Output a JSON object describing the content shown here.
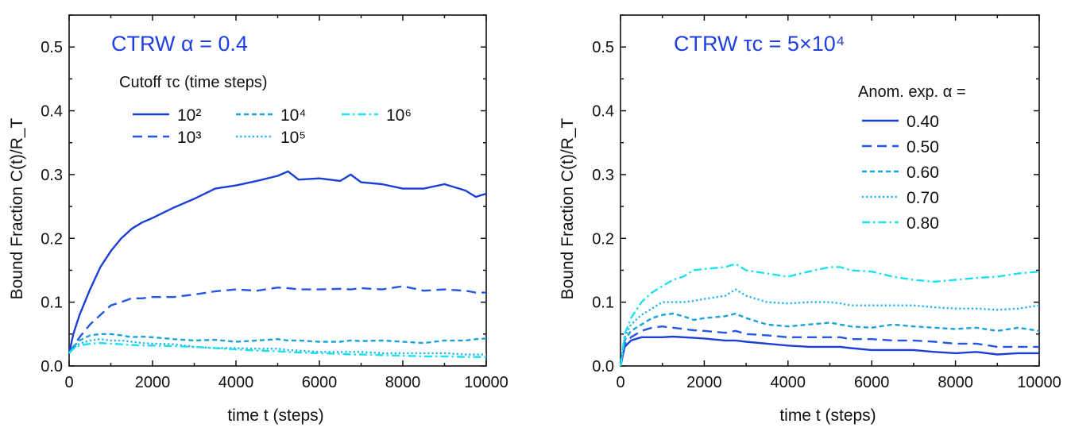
{
  "colors": {
    "series_1": "#1a3fd6",
    "series_2": "#2656e6",
    "series_3": "#1aa3d9",
    "series_4": "#22b4ee",
    "series_5": "#1ee0ee",
    "title": "#1f3fe0"
  },
  "chart_data": [
    {
      "type": "line",
      "title": "CTRW α = 0.4",
      "xlabel": "time t (steps)",
      "ylabel": "Bound Fraction C(t)/R_T",
      "xlim": [
        0,
        10000
      ],
      "ylim": [
        0,
        0.55
      ],
      "xticks": [
        "0",
        "2000",
        "4000",
        "6000",
        "8000",
        "10000"
      ],
      "yticks": [
        "0.0",
        "0.1",
        "0.2",
        "0.3",
        "0.4",
        "0.5"
      ],
      "grid": false,
      "legend": {
        "title": "Cutoff τc (time steps)",
        "placement": "top-left"
      },
      "x": [
        0,
        100,
        250,
        500,
        750,
        1000,
        1250,
        1500,
        1750,
        2000,
        2500,
        3000,
        3500,
        4000,
        4500,
        5000,
        5250,
        5500,
        6000,
        6500,
        6750,
        7000,
        7500,
        8000,
        8500,
        9000,
        9500,
        9750,
        10000
      ],
      "series": [
        {
          "name": "10²",
          "dash": "solid",
          "color": "#1a3fd6",
          "values": [
            0.02,
            0.05,
            0.08,
            0.12,
            0.155,
            0.18,
            0.2,
            0.215,
            0.225,
            0.232,
            0.248,
            0.262,
            0.278,
            0.283,
            0.29,
            0.298,
            0.305,
            0.292,
            0.294,
            0.29,
            0.3,
            0.288,
            0.285,
            0.278,
            0.278,
            0.285,
            0.275,
            0.265,
            0.27
          ]
        },
        {
          "name": "10³",
          "dash": "dash",
          "color": "#2656e6",
          "values": [
            0.02,
            0.03,
            0.045,
            0.065,
            0.08,
            0.095,
            0.1,
            0.106,
            0.106,
            0.108,
            0.108,
            0.112,
            0.117,
            0.12,
            0.118,
            0.123,
            0.122,
            0.12,
            0.12,
            0.121,
            0.12,
            0.122,
            0.12,
            0.125,
            0.118,
            0.12,
            0.118,
            0.115,
            0.115
          ]
        },
        {
          "name": "10⁴",
          "dash": "shortdash",
          "color": "#1aa3d9",
          "values": [
            0.02,
            0.03,
            0.04,
            0.048,
            0.05,
            0.05,
            0.048,
            0.045,
            0.046,
            0.045,
            0.042,
            0.04,
            0.041,
            0.038,
            0.04,
            0.042,
            0.04,
            0.04,
            0.038,
            0.038,
            0.04,
            0.039,
            0.04,
            0.038,
            0.036,
            0.04,
            0.04,
            0.042,
            0.043
          ]
        },
        {
          "name": "10⁵",
          "dash": "dot",
          "color": "#22b4ee",
          "values": [
            0.02,
            0.028,
            0.035,
            0.04,
            0.042,
            0.04,
            0.04,
            0.038,
            0.036,
            0.035,
            0.034,
            0.03,
            0.028,
            0.028,
            0.027,
            0.027,
            0.025,
            0.024,
            0.022,
            0.022,
            0.022,
            0.022,
            0.02,
            0.02,
            0.02,
            0.02,
            0.018,
            0.018,
            0.018
          ]
        },
        {
          "name": "10⁶",
          "dash": "dashdot",
          "color": "#1ee0ee",
          "values": [
            0.02,
            0.027,
            0.032,
            0.035,
            0.036,
            0.035,
            0.034,
            0.033,
            0.032,
            0.032,
            0.031,
            0.03,
            0.028,
            0.026,
            0.024,
            0.023,
            0.022,
            0.021,
            0.02,
            0.019,
            0.018,
            0.018,
            0.017,
            0.016,
            0.015,
            0.015,
            0.014,
            0.014,
            0.014
          ]
        }
      ]
    },
    {
      "type": "line",
      "title": "CTRW τc = 5×10⁴",
      "xlabel": "time t (steps)",
      "ylabel": "Bound Fraction C(t)/R_T",
      "xlim": [
        0,
        10000
      ],
      "ylim": [
        0,
        0.55
      ],
      "xticks": [
        "0",
        "2000",
        "4000",
        "6000",
        "8000",
        "10000"
      ],
      "yticks": [
        "0.0",
        "0.1",
        "0.2",
        "0.3",
        "0.4",
        "0.5"
      ],
      "grid": false,
      "legend": {
        "title": "Anom. exp. α =",
        "placement": "top-right"
      },
      "x": [
        0,
        100,
        250,
        500,
        750,
        1000,
        1250,
        1500,
        1750,
        2000,
        2500,
        2750,
        3000,
        3500,
        4000,
        4500,
        5000,
        5250,
        5500,
        6000,
        6500,
        7000,
        7500,
        8000,
        8500,
        9000,
        9500,
        10000
      ],
      "series": [
        {
          "name": "0.40",
          "dash": "solid",
          "color": "#1a3fd6",
          "values": [
            0.0,
            0.03,
            0.04,
            0.045,
            0.045,
            0.045,
            0.046,
            0.045,
            0.044,
            0.043,
            0.04,
            0.04,
            0.038,
            0.035,
            0.032,
            0.03,
            0.03,
            0.03,
            0.028,
            0.025,
            0.025,
            0.025,
            0.022,
            0.02,
            0.022,
            0.018,
            0.02,
            0.02
          ]
        },
        {
          "name": "0.50",
          "dash": "dash",
          "color": "#2656e6",
          "values": [
            0.0,
            0.035,
            0.045,
            0.055,
            0.06,
            0.062,
            0.06,
            0.058,
            0.056,
            0.055,
            0.052,
            0.055,
            0.05,
            0.048,
            0.045,
            0.045,
            0.045,
            0.045,
            0.042,
            0.042,
            0.04,
            0.04,
            0.038,
            0.035,
            0.035,
            0.03,
            0.03,
            0.03
          ]
        },
        {
          "name": "0.60",
          "dash": "shortdash",
          "color": "#1aa3d9",
          "values": [
            0.0,
            0.04,
            0.055,
            0.065,
            0.075,
            0.08,
            0.082,
            0.078,
            0.072,
            0.075,
            0.078,
            0.082,
            0.075,
            0.065,
            0.062,
            0.065,
            0.068,
            0.065,
            0.062,
            0.06,
            0.065,
            0.062,
            0.06,
            0.058,
            0.06,
            0.055,
            0.06,
            0.055
          ]
        },
        {
          "name": "0.70",
          "dash": "dot",
          "color": "#22b4ee",
          "values": [
            0.0,
            0.045,
            0.065,
            0.08,
            0.09,
            0.1,
            0.1,
            0.1,
            0.102,
            0.105,
            0.11,
            0.12,
            0.11,
            0.1,
            0.098,
            0.1,
            0.1,
            0.098,
            0.095,
            0.095,
            0.095,
            0.095,
            0.092,
            0.09,
            0.09,
            0.088,
            0.09,
            0.095
          ]
        },
        {
          "name": "0.80",
          "dash": "dashdot",
          "color": "#1ee0ee",
          "values": [
            0.0,
            0.05,
            0.075,
            0.1,
            0.115,
            0.125,
            0.135,
            0.14,
            0.15,
            0.152,
            0.155,
            0.16,
            0.15,
            0.145,
            0.14,
            0.148,
            0.155,
            0.155,
            0.15,
            0.148,
            0.14,
            0.135,
            0.132,
            0.135,
            0.138,
            0.14,
            0.145,
            0.148
          ]
        }
      ]
    }
  ]
}
